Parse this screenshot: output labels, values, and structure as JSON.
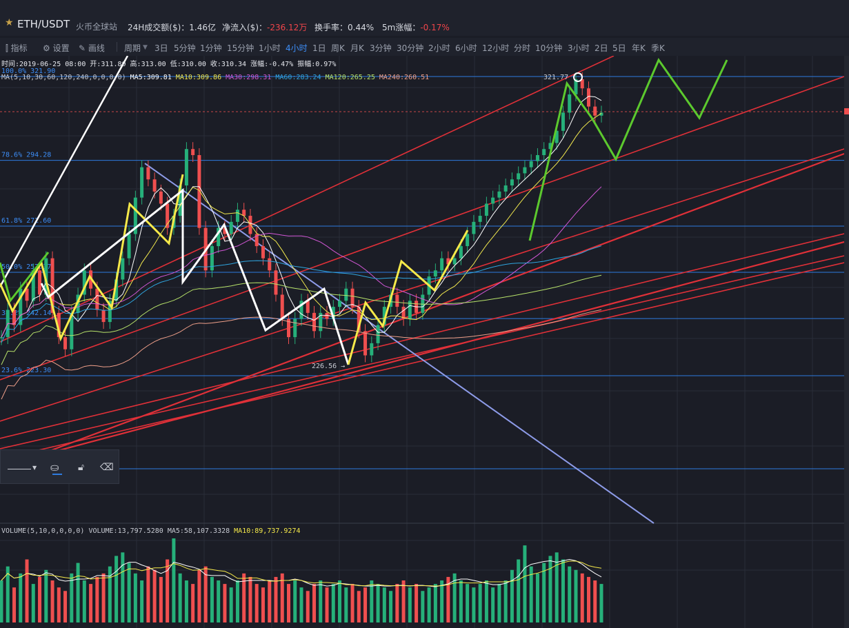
{
  "header": {
    "pair": "ETH/USDT",
    "exchange": "火币全球站",
    "stats": [
      {
        "label": "24H成交额($)：",
        "value": "1.46亿",
        "negative": false
      },
      {
        "label": "净流入($)：",
        "value": "-236.12万",
        "negative": true
      },
      {
        "label": "换手率：",
        "value": "0.44%",
        "negative": false
      },
      {
        "label": "5m涨幅：",
        "value": "-0.17%",
        "negative": true
      }
    ]
  },
  "toolbar": {
    "tools": [
      {
        "label": "指标",
        "icon": "indicator-icon"
      },
      {
        "label": "设置",
        "icon": "gear-icon"
      },
      {
        "label": "画线",
        "icon": "pencil-icon"
      }
    ],
    "period_label": "周期",
    "periods": [
      "3日",
      "5分钟",
      "1分钟",
      "15分钟",
      "1小时",
      "4小时",
      "1日",
      "周K",
      "月K",
      "3分钟",
      "30分钟",
      "2小时",
      "6小时",
      "12小时",
      "分时",
      "10分钟",
      "3小时",
      "2日",
      "5日",
      "年K",
      "季K"
    ],
    "active_period": "4小时"
  },
  "ohlc": {
    "time": "时间:2019-06-25 08:00",
    "open": "开:311.80",
    "high": "高:313.00",
    "low": "低:310.00",
    "close": "收:310.34",
    "change": "涨幅:-0.47%",
    "amplitude": "振幅:0.97%"
  },
  "ma_legend": {
    "title": "MA(5,10,30,60,120,240,0,0,0,0)",
    "items": [
      {
        "label": "MA5:309.81",
        "color": "#ffffff"
      },
      {
        "label": "MA10:309.86",
        "color": "#f2e94e"
      },
      {
        "label": "MA30:298.31",
        "color": "#d257d6"
      },
      {
        "label": "MA60:283.24",
        "color": "#2fa6e0"
      },
      {
        "label": "MA120:265.25",
        "color": "#b8e36a"
      },
      {
        "label": "MA240:260.51",
        "color": "#f0a08a"
      }
    ]
  },
  "fib_labels": [
    {
      "label": "100.0% 321.90",
      "price": 321.9
    },
    {
      "label": "78.6% 294.28",
      "price": 294.28
    },
    {
      "label": "61.8% 272.60",
      "price": 272.6
    },
    {
      "label": "50.0% 257.37",
      "price": 257.37
    },
    {
      "label": "38.2% 242.14",
      "price": 242.14
    },
    {
      "label": "23.6% 223.30",
      "price": 223.3
    }
  ],
  "annotations": {
    "high_label": "321.77",
    "low_label": "226.56"
  },
  "volume_legend": {
    "title": "VOLUME(5,10,0,0,0,0)",
    "volume": "VOLUME:13,797.5280",
    "ma5": "MA5:58,107.3328",
    "ma10": "MA10:89,737.9274"
  },
  "colors": {
    "up": "#26b07a",
    "down": "#ef4f4f",
    "fib_line": "#2e7be0",
    "fan_line": "#e03038",
    "downtrend": "#8d9be8",
    "wave_white": "#ffffff",
    "wave_yellow": "#f6ea4a",
    "wave_green": "#5cc92e"
  },
  "chart_data": {
    "type": "candlestick",
    "title": "ETH/USDT",
    "ylim": [
      200,
      335
    ],
    "close_series": [
      236,
      245,
      240,
      252,
      248,
      258,
      250,
      262,
      244,
      236,
      232,
      244,
      250,
      258,
      252,
      245,
      241,
      248,
      255,
      262,
      270,
      282,
      292,
      288,
      284,
      280,
      272,
      276,
      286,
      298,
      296,
      272,
      258,
      266,
      272,
      270,
      274,
      278,
      276,
      270,
      266,
      262,
      258,
      250,
      242,
      236,
      242,
      248,
      244,
      238,
      244,
      242,
      246,
      248,
      252,
      246,
      238,
      230,
      234,
      240,
      246,
      250,
      246,
      242,
      248,
      244,
      250,
      256,
      258,
      262,
      260,
      262,
      266,
      270,
      274,
      276,
      280,
      282,
      284,
      286,
      288,
      290,
      292,
      294,
      296,
      298,
      300,
      304,
      310,
      316,
      321,
      318,
      312,
      309,
      310
    ],
    "volume_series": [
      60,
      80,
      50,
      70,
      90,
      55,
      65,
      75,
      60,
      50,
      45,
      70,
      85,
      60,
      55,
      65,
      70,
      80,
      95,
      100,
      85,
      70,
      60,
      80,
      75,
      65,
      90,
      120,
      70,
      60,
      55,
      75,
      80,
      65,
      60,
      55,
      50,
      60,
      70,
      65,
      55,
      50,
      60,
      65,
      70,
      55,
      60,
      50,
      45,
      55,
      60,
      50,
      55,
      60,
      50,
      55,
      45,
      50,
      60,
      55,
      50,
      45,
      55,
      60,
      50,
      55,
      45,
      50,
      55,
      60,
      65,
      70,
      60,
      55,
      50,
      55,
      60,
      50,
      55,
      60,
      75,
      90,
      110,
      80,
      70,
      85,
      95,
      100,
      90,
      80,
      75,
      70,
      65,
      60,
      55
    ],
    "series": [
      {
        "name": "MA5",
        "value": 309.81
      },
      {
        "name": "MA10",
        "value": 309.86
      },
      {
        "name": "MA30",
        "value": 298.31
      },
      {
        "name": "MA60",
        "value": 283.24
      },
      {
        "name": "MA120",
        "value": 265.25
      },
      {
        "name": "MA240",
        "value": 260.51
      }
    ],
    "fib_levels": [
      {
        "pct": "100.0%",
        "price": 321.9
      },
      {
        "pct": "78.6%",
        "price": 294.28
      },
      {
        "pct": "61.8%",
        "price": 272.6
      },
      {
        "pct": "50.0%",
        "price": 257.37
      },
      {
        "pct": "38.2%",
        "price": 242.14
      },
      {
        "pct": "23.6%",
        "price": 223.3
      }
    ],
    "grid": true
  }
}
